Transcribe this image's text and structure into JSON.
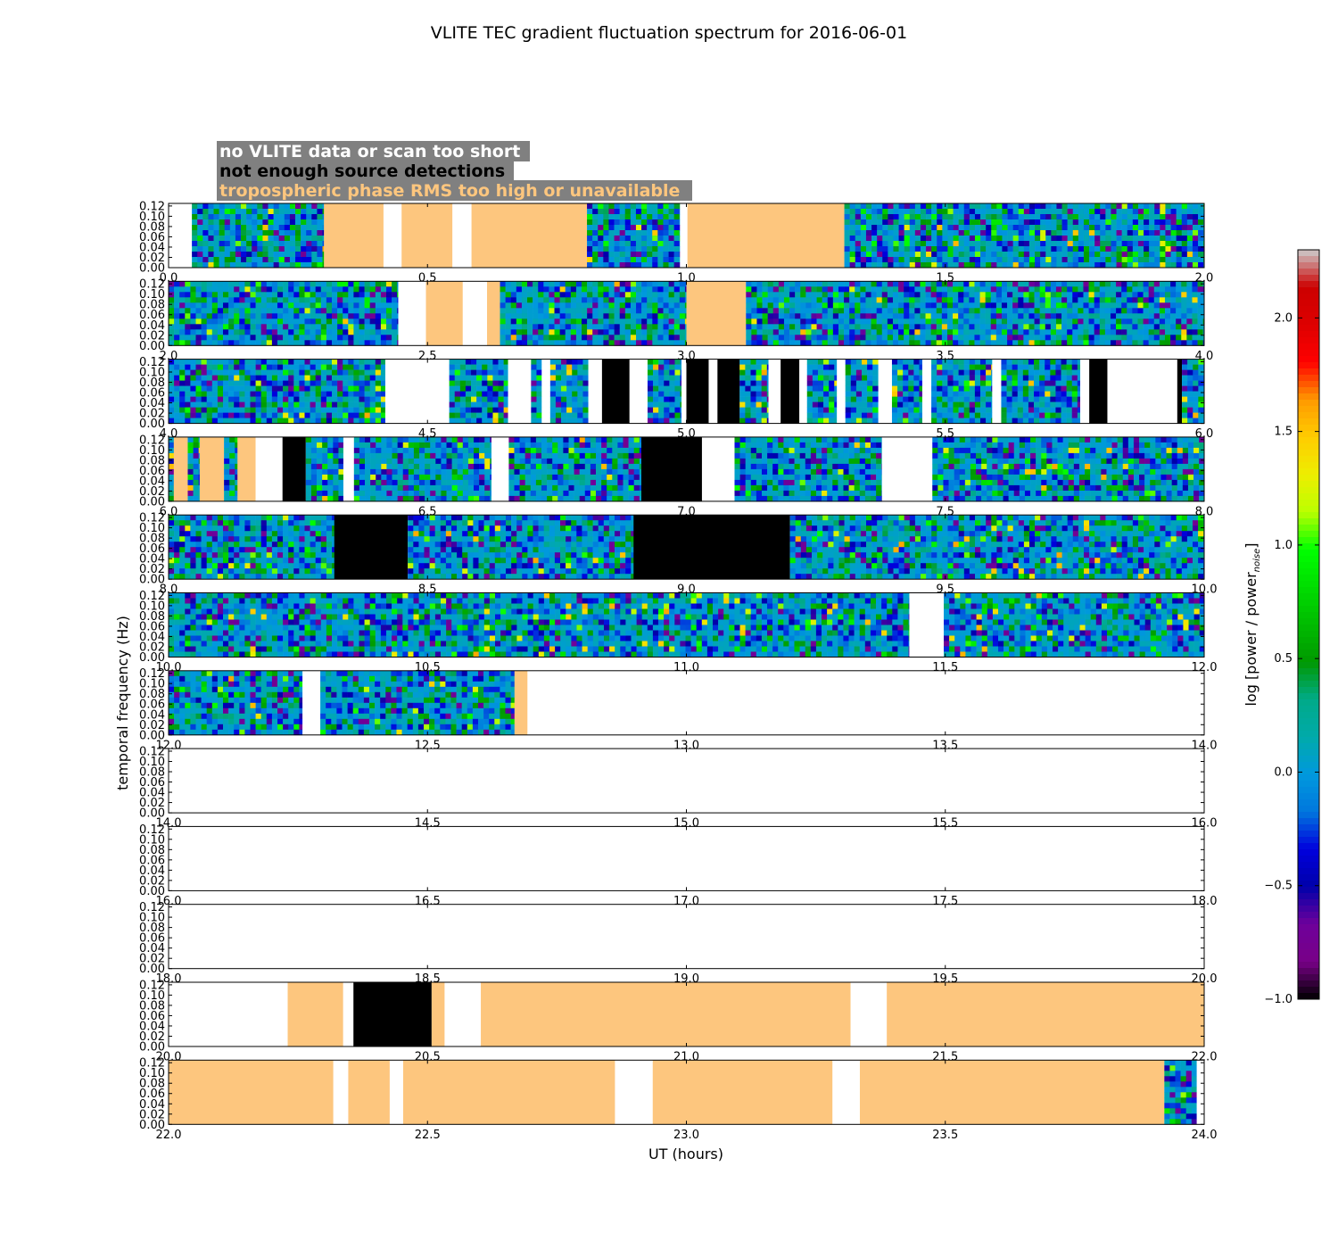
{
  "chart_data": {
    "type": "heatmap",
    "title": "VLITE TEC gradient fluctuation spectrum for 2016-06-01",
    "xlabel": "UT (hours)",
    "ylabel": "temporal frequency (Hz)",
    "colorbar_label": "log [power / power",
    "colorbar_label_sub": "noise",
    "colorbar_label_end": "]",
    "colormap": "nipy_spectral",
    "colorbar_range": [
      -1.0,
      2.3
    ],
    "colorbar_ticks": [
      "−1.0",
      "−0.5",
      "0.0",
      "0.5",
      "1.0",
      "1.5",
      "2.0"
    ],
    "colorbar_tick_values": [
      -1.0,
      -0.5,
      0.0,
      0.5,
      1.0,
      1.5,
      2.0
    ],
    "ylim": [
      0.0,
      0.125
    ],
    "y_ticks": [
      "0.00",
      "0.02",
      "0.04",
      "0.06",
      "0.08",
      "0.10",
      "0.12"
    ],
    "y_tick_values": [
      0.0,
      0.02,
      0.04,
      0.06,
      0.08,
      0.1,
      0.12
    ],
    "legend": [
      {
        "text": "no VLITE data or scan too short",
        "color": "#ffffff",
        "category": "nodata"
      },
      {
        "text": "not enough source detections",
        "color": "#000000",
        "category": "nodet"
      },
      {
        "text": "tropospheric phase RMS too high or unavailable",
        "color": "#fdc67e",
        "category": "tropo"
      }
    ],
    "legend_bg": "#808080",
    "category_colors": {
      "nodata": "#ffffff",
      "nodet": "#000000",
      "tropo": "#fdc67e"
    },
    "rows": [
      {
        "xlim": [
          0.0,
          2.0
        ],
        "x_ticks": [
          "0.0",
          "0.5",
          "1.0",
          "1.5",
          "2.0"
        ],
        "segments": [
          {
            "start": 0.0,
            "end": 0.045,
            "status": "nodata"
          },
          {
            "start": 0.045,
            "end": 0.3,
            "status": "data"
          },
          {
            "start": 0.3,
            "end": 0.415,
            "status": "tropo"
          },
          {
            "start": 0.415,
            "end": 0.45,
            "status": "nodata"
          },
          {
            "start": 0.45,
            "end": 0.548,
            "status": "tropo"
          },
          {
            "start": 0.548,
            "end": 0.585,
            "status": "nodata"
          },
          {
            "start": 0.585,
            "end": 0.808,
            "status": "tropo"
          },
          {
            "start": 0.808,
            "end": 0.987,
            "status": "data"
          },
          {
            "start": 0.987,
            "end": 1.002,
            "status": "nodata"
          },
          {
            "start": 1.002,
            "end": 1.305,
            "status": "tropo"
          },
          {
            "start": 1.305,
            "end": 2.0,
            "status": "data"
          }
        ]
      },
      {
        "xlim": [
          2.0,
          4.0
        ],
        "x_ticks": [
          "2.0",
          "2.5",
          "3.0",
          "3.5",
          "4.0"
        ],
        "segments": [
          {
            "start": 2.0,
            "end": 2.443,
            "status": "data"
          },
          {
            "start": 2.443,
            "end": 2.497,
            "status": "nodata"
          },
          {
            "start": 2.497,
            "end": 2.568,
            "status": "tropo"
          },
          {
            "start": 2.568,
            "end": 2.615,
            "status": "nodata"
          },
          {
            "start": 2.615,
            "end": 2.64,
            "status": "tropo"
          },
          {
            "start": 2.64,
            "end": 3.0,
            "status": "data"
          },
          {
            "start": 3.0,
            "end": 3.115,
            "status": "tropo"
          },
          {
            "start": 3.115,
            "end": 4.0,
            "status": "data"
          }
        ]
      },
      {
        "xlim": [
          4.0,
          6.0
        ],
        "x_ticks": [
          "4.0",
          "4.5",
          "5.0",
          "5.5",
          "6.0"
        ],
        "segments": [
          {
            "start": 4.0,
            "end": 4.418,
            "status": "data"
          },
          {
            "start": 4.418,
            "end": 4.542,
            "status": "nodata"
          },
          {
            "start": 4.542,
            "end": 4.655,
            "status": "data"
          },
          {
            "start": 4.655,
            "end": 4.7,
            "status": "nodata"
          },
          {
            "start": 4.7,
            "end": 4.72,
            "status": "data"
          },
          {
            "start": 4.72,
            "end": 4.737,
            "status": "nodata"
          },
          {
            "start": 4.737,
            "end": 4.81,
            "status": "data"
          },
          {
            "start": 4.81,
            "end": 4.837,
            "status": "nodata"
          },
          {
            "start": 4.837,
            "end": 4.89,
            "status": "nodet"
          },
          {
            "start": 4.89,
            "end": 4.925,
            "status": "nodata"
          },
          {
            "start": 4.925,
            "end": 4.99,
            "status": "data"
          },
          {
            "start": 4.99,
            "end": 5.0,
            "status": "nodata"
          },
          {
            "start": 5.0,
            "end": 5.043,
            "status": "nodet"
          },
          {
            "start": 5.043,
            "end": 5.06,
            "status": "nodata"
          },
          {
            "start": 5.06,
            "end": 5.103,
            "status": "nodet"
          },
          {
            "start": 5.103,
            "end": 5.158,
            "status": "data"
          },
          {
            "start": 5.158,
            "end": 5.182,
            "status": "nodata"
          },
          {
            "start": 5.182,
            "end": 5.218,
            "status": "nodet"
          },
          {
            "start": 5.218,
            "end": 5.233,
            "status": "nodata"
          },
          {
            "start": 5.233,
            "end": 5.29,
            "status": "data"
          },
          {
            "start": 5.29,
            "end": 5.307,
            "status": "nodata"
          },
          {
            "start": 5.307,
            "end": 5.37,
            "status": "data"
          },
          {
            "start": 5.37,
            "end": 5.397,
            "status": "nodata"
          },
          {
            "start": 5.397,
            "end": 5.455,
            "status": "data"
          },
          {
            "start": 5.455,
            "end": 5.473,
            "status": "nodata"
          },
          {
            "start": 5.473,
            "end": 5.59,
            "status": "data"
          },
          {
            "start": 5.59,
            "end": 5.608,
            "status": "nodata"
          },
          {
            "start": 5.608,
            "end": 5.76,
            "status": "data"
          },
          {
            "start": 5.76,
            "end": 5.778,
            "status": "nodata"
          },
          {
            "start": 5.778,
            "end": 5.813,
            "status": "nodet"
          },
          {
            "start": 5.813,
            "end": 5.948,
            "status": "nodata"
          },
          {
            "start": 5.948,
            "end": 5.957,
            "status": "nodet"
          },
          {
            "start": 5.957,
            "end": 6.0,
            "status": "data"
          }
        ]
      },
      {
        "xlim": [
          6.0,
          8.0
        ],
        "x_ticks": [
          "6.0",
          "6.5",
          "7.0",
          "7.5",
          "8.0"
        ],
        "segments": [
          {
            "start": 6.0,
            "end": 6.01,
            "status": "data"
          },
          {
            "start": 6.01,
            "end": 6.037,
            "status": "tropo"
          },
          {
            "start": 6.037,
            "end": 6.06,
            "status": "data"
          },
          {
            "start": 6.06,
            "end": 6.107,
            "status": "tropo"
          },
          {
            "start": 6.107,
            "end": 6.133,
            "status": "data"
          },
          {
            "start": 6.133,
            "end": 6.168,
            "status": "tropo"
          },
          {
            "start": 6.168,
            "end": 6.22,
            "status": "nodata"
          },
          {
            "start": 6.22,
            "end": 6.265,
            "status": "nodet"
          },
          {
            "start": 6.265,
            "end": 6.337,
            "status": "data"
          },
          {
            "start": 6.337,
            "end": 6.358,
            "status": "nodata"
          },
          {
            "start": 6.358,
            "end": 6.623,
            "status": "data"
          },
          {
            "start": 6.623,
            "end": 6.657,
            "status": "nodata"
          },
          {
            "start": 6.657,
            "end": 6.913,
            "status": "data"
          },
          {
            "start": 6.913,
            "end": 7.03,
            "status": "nodet"
          },
          {
            "start": 7.03,
            "end": 7.093,
            "status": "nodata"
          },
          {
            "start": 7.093,
            "end": 7.377,
            "status": "data"
          },
          {
            "start": 7.377,
            "end": 7.475,
            "status": "nodata"
          },
          {
            "start": 7.475,
            "end": 8.0,
            "status": "data"
          }
        ]
      },
      {
        "xlim": [
          8.0,
          10.0
        ],
        "x_ticks": [
          "8.0",
          "8.5",
          "9.0",
          "9.5",
          "10.0"
        ],
        "segments": [
          {
            "start": 8.0,
            "end": 8.32,
            "status": "data"
          },
          {
            "start": 8.32,
            "end": 8.462,
            "status": "nodet"
          },
          {
            "start": 8.462,
            "end": 8.898,
            "status": "data"
          },
          {
            "start": 8.898,
            "end": 9.2,
            "status": "nodet"
          },
          {
            "start": 9.2,
            "end": 10.0,
            "status": "data"
          }
        ]
      },
      {
        "xlim": [
          10.0,
          12.0
        ],
        "x_ticks": [
          "10.0",
          "10.5",
          "11.0",
          "11.5",
          "12.0"
        ],
        "segments": [
          {
            "start": 10.0,
            "end": 11.43,
            "status": "data"
          },
          {
            "start": 11.43,
            "end": 11.497,
            "status": "nodata"
          },
          {
            "start": 11.497,
            "end": 12.0,
            "status": "data"
          }
        ]
      },
      {
        "xlim": [
          12.0,
          14.0
        ],
        "x_ticks": [
          "12.0",
          "12.5",
          "13.0",
          "13.5",
          "14.0"
        ],
        "segments": [
          {
            "start": 12.0,
            "end": 12.258,
            "status": "data"
          },
          {
            "start": 12.258,
            "end": 12.293,
            "status": "nodata"
          },
          {
            "start": 12.293,
            "end": 12.668,
            "status": "data"
          },
          {
            "start": 12.668,
            "end": 12.693,
            "status": "tropo"
          },
          {
            "start": 12.693,
            "end": 14.0,
            "status": "nodata"
          }
        ]
      },
      {
        "xlim": [
          14.0,
          16.0
        ],
        "x_ticks": [
          "14.0",
          "14.5",
          "15.0",
          "15.5",
          "16.0"
        ],
        "segments": [
          {
            "start": 14.0,
            "end": 16.0,
            "status": "nodata"
          }
        ]
      },
      {
        "xlim": [
          16.0,
          18.0
        ],
        "x_ticks": [
          "16.0",
          "16.5",
          "17.0",
          "17.5",
          "18.0"
        ],
        "segments": [
          {
            "start": 16.0,
            "end": 18.0,
            "status": "nodata"
          }
        ]
      },
      {
        "xlim": [
          18.0,
          20.0
        ],
        "x_ticks": [
          "18.0",
          "18.5",
          "19.0",
          "19.5",
          "20.0"
        ],
        "segments": [
          {
            "start": 18.0,
            "end": 20.0,
            "status": "nodata"
          }
        ]
      },
      {
        "xlim": [
          20.0,
          22.0
        ],
        "x_ticks": [
          "20.0",
          "20.5",
          "21.0",
          "21.5",
          "22.0"
        ],
        "segments": [
          {
            "start": 20.0,
            "end": 20.23,
            "status": "nodata"
          },
          {
            "start": 20.23,
            "end": 20.337,
            "status": "tropo"
          },
          {
            "start": 20.337,
            "end": 20.357,
            "status": "nodata"
          },
          {
            "start": 20.357,
            "end": 20.508,
            "status": "nodet"
          },
          {
            "start": 20.508,
            "end": 20.533,
            "status": "tropo"
          },
          {
            "start": 20.533,
            "end": 20.603,
            "status": "nodata"
          },
          {
            "start": 20.603,
            "end": 21.317,
            "status": "tropo"
          },
          {
            "start": 21.317,
            "end": 21.387,
            "status": "nodata"
          },
          {
            "start": 21.387,
            "end": 22.0,
            "status": "tropo"
          }
        ]
      },
      {
        "xlim": [
          22.0,
          24.0
        ],
        "x_ticks": [
          "22.0",
          "22.5",
          "23.0",
          "23.5",
          "24.0"
        ],
        "segments": [
          {
            "start": 22.0,
            "end": 22.318,
            "status": "tropo"
          },
          {
            "start": 22.318,
            "end": 22.347,
            "status": "nodata"
          },
          {
            "start": 22.347,
            "end": 22.427,
            "status": "tropo"
          },
          {
            "start": 22.427,
            "end": 22.453,
            "status": "nodata"
          },
          {
            "start": 22.453,
            "end": 22.862,
            "status": "tropo"
          },
          {
            "start": 22.862,
            "end": 22.935,
            "status": "nodata"
          },
          {
            "start": 22.935,
            "end": 23.282,
            "status": "tropo"
          },
          {
            "start": 23.282,
            "end": 23.335,
            "status": "nodata"
          },
          {
            "start": 23.335,
            "end": 23.923,
            "status": "tropo"
          },
          {
            "start": 23.923,
            "end": 23.985,
            "status": "data"
          },
          {
            "start": 23.985,
            "end": 24.0,
            "status": "nodata"
          }
        ]
      }
    ]
  }
}
